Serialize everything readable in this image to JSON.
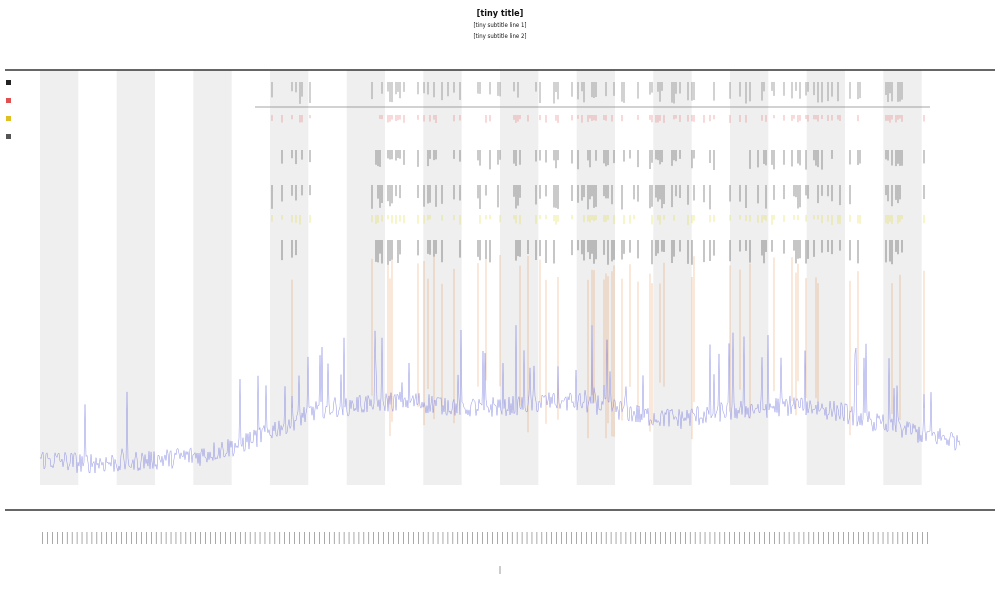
{
  "chart_data": {
    "type": "line",
    "title": "[tiny title]",
    "subtitle_1": "[tiny subtitle line 1]",
    "subtitle_2": "[tiny subtitle line 2]",
    "xlabel": "",
    "ylabel": "",
    "grid": true,
    "x_band_count": 24,
    "tick_count": 180,
    "legend_entries": [
      {
        "name": "",
        "color": "#222222"
      },
      {
        "name": "",
        "color": "#e05050"
      },
      {
        "name": "",
        "color": "#e0c020"
      },
      {
        "name": "",
        "color": "#555555"
      }
    ],
    "tracks": [
      {
        "name": "",
        "color": "#444444"
      },
      {
        "name": "",
        "color": "#e06060"
      },
      {
        "name": "",
        "color": "#222222"
      },
      {
        "name": "",
        "color": "#222222"
      },
      {
        "name": "",
        "color": "#d8d820"
      },
      {
        "name": "",
        "color": "#111111"
      }
    ],
    "series": [
      {
        "name": "",
        "color": "#7b7fe0",
        "baseline_profile": [
          0.05,
          0.04,
          0.04,
          0.05,
          0.06,
          0.09,
          0.14,
          0.19,
          0.2,
          0.21,
          0.2,
          0.19,
          0.2,
          0.21,
          0.2,
          0.17,
          0.16,
          0.18,
          0.19,
          0.2,
          0.18,
          0.15,
          0.12,
          0.1
        ]
      },
      {
        "name": "",
        "color": "#e07020"
      }
    ],
    "colors": {
      "band": "#efefef",
      "axis": "#333333",
      "series_line": "#7b7fe0",
      "spike": "#e07020"
    }
  }
}
